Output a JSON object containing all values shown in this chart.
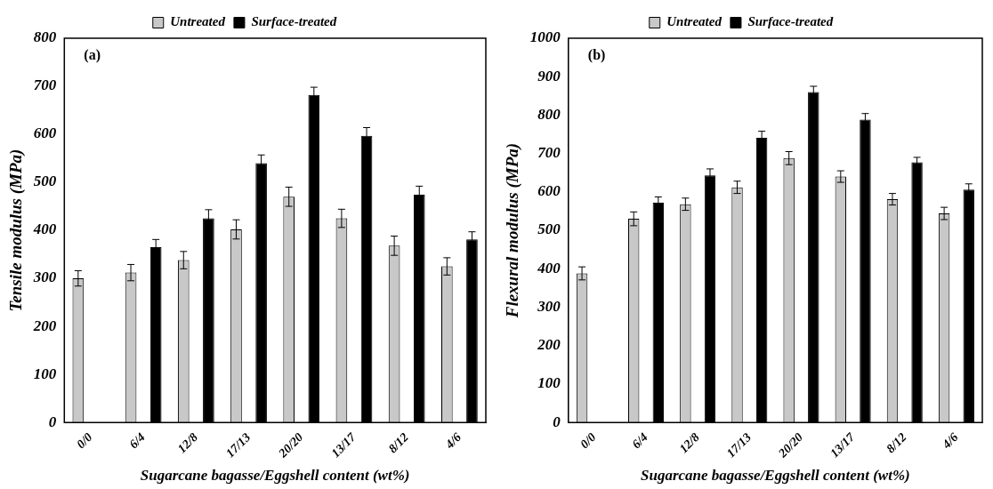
{
  "chart_data": [
    {
      "type": "bar",
      "annotations": [
        "(a)"
      ],
      "xlabel": "Sugarcane bagasse/Eggshell content (wt%)",
      "ylabel": "Tensile modulus (MPa)",
      "categories": [
        "0/0",
        "6/4",
        "12/8",
        "17/13",
        "20/20",
        "13/17",
        "8/12",
        "4/6"
      ],
      "ylim": [
        0,
        800
      ],
      "yticks": [
        0,
        100,
        200,
        300,
        400,
        500,
        600,
        700,
        800
      ],
      "grid": false,
      "legend": "top",
      "series": [
        {
          "name": "Untreated",
          "color": "#c8c8c8",
          "values": [
            300,
            312,
            338,
            402,
            470,
            425,
            368,
            325
          ],
          "errors": [
            16,
            17,
            18,
            20,
            20,
            19,
            20,
            18
          ]
        },
        {
          "name": "Surface-treated",
          "color": "#000000",
          "values": [
            null,
            365,
            425,
            540,
            682,
            597,
            474,
            381
          ],
          "errors": [
            null,
            16,
            18,
            17,
            16,
            17,
            18,
            16
          ]
        }
      ]
    },
    {
      "type": "bar",
      "annotations": [
        "(b)"
      ],
      "xlabel": "Sugarcane bagasse/Eggshell content (wt%)",
      "ylabel": "Flexural modulus (MPa)",
      "categories": [
        "0/0",
        "6/4",
        "12/8",
        "17/13",
        "20/20",
        "13/17",
        "8/12",
        "4/6"
      ],
      "ylim": [
        0,
        1000
      ],
      "yticks": [
        0,
        100,
        200,
        300,
        400,
        500,
        600,
        700,
        800,
        900,
        1000
      ],
      "grid": false,
      "legend": "top",
      "series": [
        {
          "name": "Untreated",
          "color": "#c8c8c8",
          "values": [
            388,
            530,
            568,
            612,
            688,
            640,
            581,
            544
          ],
          "errors": [
            17,
            18,
            16,
            16,
            17,
            15,
            15,
            16
          ]
        },
        {
          "name": "Surface-treated",
          "color": "#000000",
          "values": [
            null,
            572,
            643,
            741,
            860,
            788,
            677,
            606
          ],
          "errors": [
            null,
            15,
            17,
            17,
            15,
            16,
            13,
            15
          ]
        }
      ]
    }
  ]
}
